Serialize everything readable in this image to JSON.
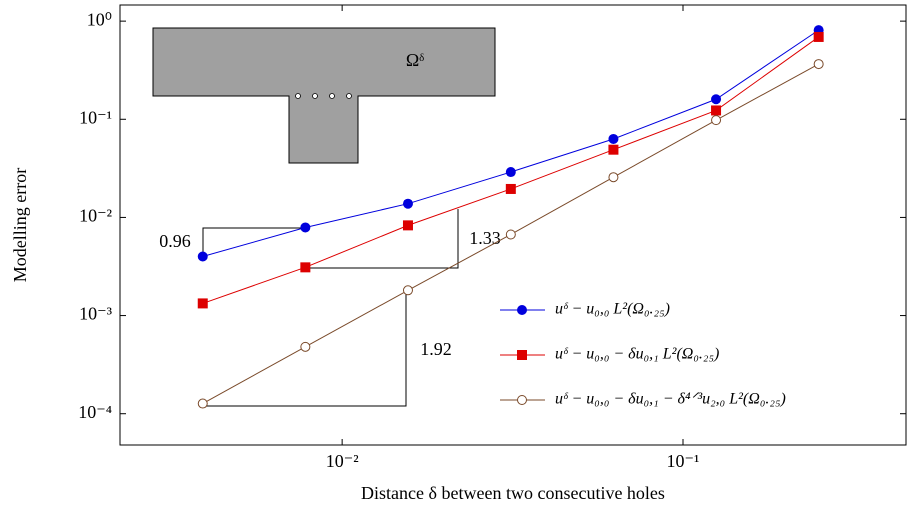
{
  "chart_data": {
    "type": "line",
    "xlabel": "Distance δ between two consecutive holes",
    "ylabel": "Modelling error",
    "log_x": true,
    "log_y": true,
    "xlim": [
      0.00223,
      0.451
    ],
    "ylim": [
      4.8e-05,
      1.46
    ],
    "xticks": [
      {
        "value": 0.01,
        "label": "10⁻²"
      },
      {
        "value": 0.1,
        "label": "10⁻¹"
      }
    ],
    "yticks": [
      {
        "value": 0.0001,
        "label": "10⁻⁴"
      },
      {
        "value": 0.001,
        "label": "10⁻³"
      },
      {
        "value": 0.01,
        "label": "10⁻²"
      },
      {
        "value": 0.1,
        "label": "10⁻¹"
      },
      {
        "value": 1,
        "label": "10⁰"
      }
    ],
    "x": [
      0.0039,
      0.0078,
      0.0156,
      0.03125,
      0.0625,
      0.125,
      0.25
    ],
    "series": [
      {
        "name": "uᵟ − u₀,₀  L²(Ω₀.₂₅)",
        "color": "#0000dd",
        "marker": "circle",
        "values": [
          0.004,
          0.0079,
          0.0138,
          0.029,
          0.063,
          0.16,
          0.81
        ]
      },
      {
        "name": "uᵟ − u₀,₀ − δu₀,₁  L²(Ω₀.₂₅)",
        "color": "#dd0000",
        "marker": "square",
        "values": [
          0.00133,
          0.0031,
          0.0083,
          0.0195,
          0.049,
          0.123,
          0.69
        ]
      },
      {
        "name": "uᵟ − u₀,₀ − δu₀,₁ − δ⁴ᐟ³u₂,₀  L²(Ω₀.₂₅)",
        "color": "#7a4a2a",
        "marker": "open-circle",
        "values": [
          0.000127,
          0.00048,
          0.00181,
          0.0067,
          0.0257,
          0.098,
          0.365
        ]
      }
    ],
    "annotations": [
      "0.96",
      "1.33",
      "1.92"
    ],
    "inset_label": "Ωᵟ",
    "legend": "lower right"
  }
}
